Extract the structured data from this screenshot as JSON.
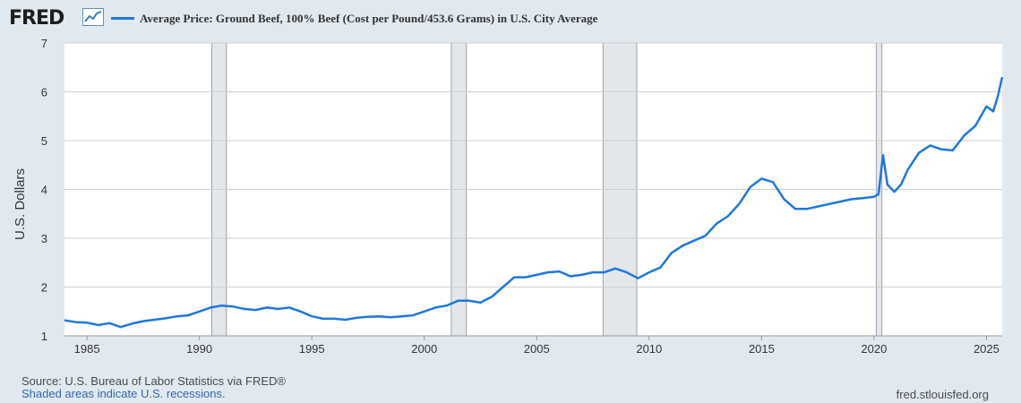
{
  "header": {
    "logo_text": "FRED",
    "title": "Average Price: Ground Beef, 100% Beef (Cost per Pound/453.6 Grams) in U.S. City Average"
  },
  "footer": {
    "source": "Source: U.S. Bureau of Labor Statistics via FRED®",
    "recessions_note": "Shaded areas indicate U.S. recessions.",
    "site": "fred.stlouisfed.org"
  },
  "colors": {
    "series": "#1f77dd",
    "recession": "#e3e7eb",
    "background": "#e1e9f0"
  },
  "chart_data": {
    "type": "line",
    "title": "Average Price: Ground Beef, 100% Beef (Cost per Pound/453.6 Grams) in U.S. City Average",
    "ylabel": "U.S. Dollars",
    "xlabel": "",
    "xlim": [
      1984.0,
      2025.7
    ],
    "ylim": [
      1,
      7
    ],
    "yticks": [
      1,
      2,
      3,
      4,
      5,
      6,
      7
    ],
    "xticks": [
      1985,
      1990,
      1995,
      2000,
      2005,
      2010,
      2015,
      2020,
      2025
    ],
    "recessions": [
      [
        1990.55,
        1991.2
      ],
      [
        2001.2,
        2001.87
      ],
      [
        2007.95,
        2009.45
      ],
      [
        2020.1,
        2020.35
      ]
    ],
    "series": [
      {
        "name": "Average Price: Ground Beef, 100% Beef",
        "x": [
          1984.0,
          1984.5,
          1985.0,
          1985.5,
          1986.0,
          1986.5,
          1987.0,
          1987.5,
          1988.0,
          1988.5,
          1989.0,
          1989.5,
          1990.0,
          1990.5,
          1991.0,
          1991.5,
          1992.0,
          1992.5,
          1993.0,
          1993.5,
          1994.0,
          1994.5,
          1995.0,
          1995.5,
          1996.0,
          1996.5,
          1997.0,
          1997.5,
          1998.0,
          1998.5,
          1999.0,
          1999.5,
          2000.0,
          2000.5,
          2001.0,
          2001.5,
          2002.0,
          2002.5,
          2003.0,
          2003.5,
          2004.0,
          2004.5,
          2005.0,
          2005.5,
          2006.0,
          2006.5,
          2007.0,
          2007.5,
          2008.0,
          2008.5,
          2009.0,
          2009.5,
          2010.0,
          2010.5,
          2011.0,
          2011.5,
          2012.0,
          2012.5,
          2013.0,
          2013.5,
          2014.0,
          2014.5,
          2015.0,
          2015.5,
          2016.0,
          2016.5,
          2017.0,
          2017.5,
          2018.0,
          2018.5,
          2019.0,
          2019.5,
          2020.0,
          2020.2,
          2020.4,
          2020.6,
          2020.9,
          2021.2,
          2021.5,
          2022.0,
          2022.5,
          2023.0,
          2023.5,
          2024.0,
          2024.5,
          2025.0,
          2025.3,
          2025.5,
          2025.7
        ],
        "values": [
          1.32,
          1.28,
          1.27,
          1.22,
          1.26,
          1.18,
          1.25,
          1.3,
          1.33,
          1.36,
          1.4,
          1.42,
          1.5,
          1.58,
          1.62,
          1.6,
          1.55,
          1.53,
          1.58,
          1.55,
          1.58,
          1.5,
          1.4,
          1.35,
          1.35,
          1.33,
          1.37,
          1.39,
          1.4,
          1.38,
          1.4,
          1.42,
          1.5,
          1.58,
          1.62,
          1.72,
          1.72,
          1.68,
          1.8,
          2.0,
          2.2,
          2.2,
          2.25,
          2.3,
          2.32,
          2.22,
          2.25,
          2.3,
          2.3,
          2.38,
          2.3,
          2.18,
          2.3,
          2.4,
          2.7,
          2.85,
          2.95,
          3.05,
          3.3,
          3.45,
          3.7,
          4.05,
          4.22,
          4.15,
          3.8,
          3.6,
          3.6,
          3.65,
          3.7,
          3.75,
          3.8,
          3.82,
          3.85,
          3.9,
          4.7,
          4.1,
          3.95,
          4.1,
          4.4,
          4.75,
          4.9,
          4.82,
          4.8,
          5.1,
          5.3,
          5.7,
          5.6,
          5.9,
          6.3
        ]
      }
    ]
  }
}
